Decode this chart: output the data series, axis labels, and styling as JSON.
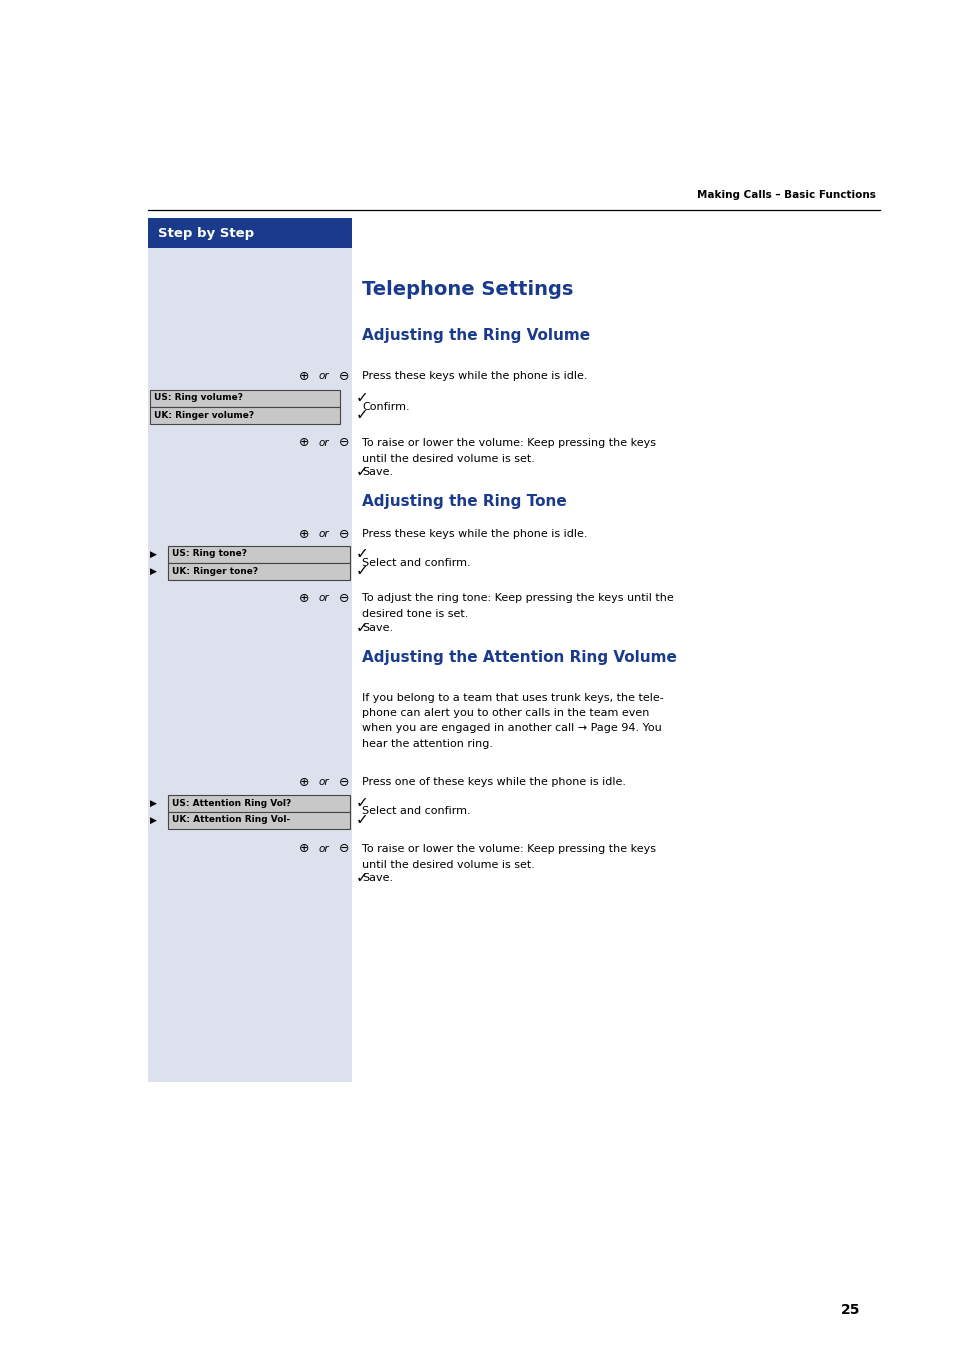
{
  "page_bg": "#ffffff",
  "left_panel_bg": "#dde1ee",
  "header_text": "Making Calls – Basic Functions",
  "step_by_step_bg": "#1a3a8c",
  "step_by_step_text": "Step by Step",
  "main_title": "Telephone Settings",
  "section1_title": "Adjusting the Ring Volume",
  "section2_title": "Adjusting the Ring Tone",
  "section3_title": "Adjusting the Attention Ring Volume",
  "title_color": "#1a3a8c",
  "body_color": "#000000",
  "header_color": "#000000",
  "page_number": "25"
}
